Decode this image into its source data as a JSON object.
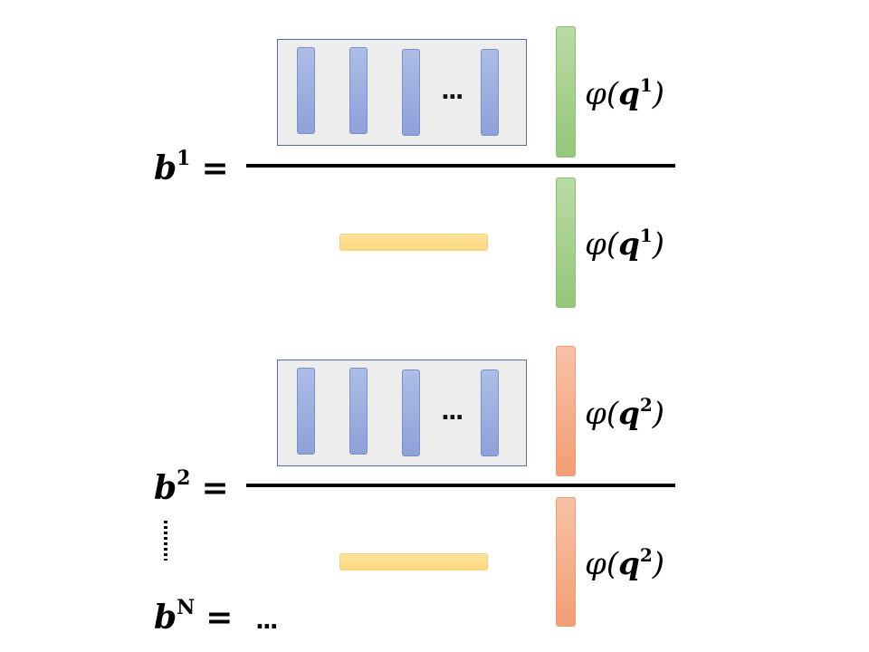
{
  "block1": {
    "lhs_var": "b",
    "lhs_sup": "1",
    "equals": "=",
    "numerator_dots": "...",
    "phi_top": {
      "phi": "φ",
      "q": "q",
      "sup": "1"
    },
    "phi_bottom": {
      "phi": "φ",
      "q": "q",
      "sup": "1"
    },
    "vector_color": "#a6cf8f"
  },
  "block2": {
    "lhs_var": "b",
    "lhs_sup": "2",
    "equals": "=",
    "numerator_dots": "...",
    "phi_top": {
      "phi": "φ",
      "q": "q",
      "sup": "2"
    },
    "phi_bottom": {
      "phi": "φ",
      "q": "q",
      "sup": "2"
    },
    "vector_color": "#f4ad88"
  },
  "blockN": {
    "lhs_var": "b",
    "lhs_sup": "N",
    "equals": "=",
    "rhs": "..."
  },
  "colors": {
    "matrix_fill": "#ededed",
    "matrix_border": "#5a6a94",
    "column_vector": "#9eb0e0",
    "denominator_bar": "#fcdd8c",
    "fraction_line": "#000000"
  }
}
